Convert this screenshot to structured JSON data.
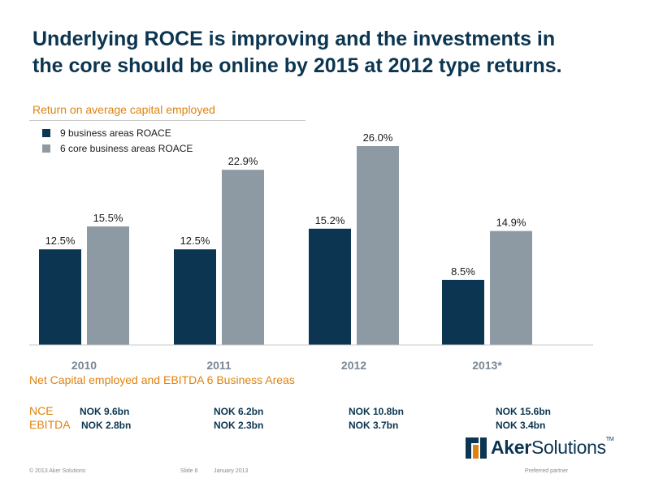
{
  "title": {
    "line1": "Underlying ROCE is improving and the investments in",
    "line2": "the core should be online by 2015 at 2012 type returns."
  },
  "subtitle": "Return on average capital employed",
  "legend": [
    {
      "label": "9 business areas ROACE",
      "color": "#0b3550"
    },
    {
      "label": "6 core business areas ROACE",
      "color": "#8e9aa3"
    }
  ],
  "chart_data": {
    "type": "bar",
    "title": "Return on average capital employed",
    "categories": [
      "2010",
      "2011",
      "2012",
      "2013*"
    ],
    "series": [
      {
        "name": "9 business areas ROACE",
        "values": [
          12.5,
          12.5,
          15.2,
          8.5
        ],
        "labels": [
          "12.5%",
          "12.5%",
          "15.2%",
          "8.5%"
        ],
        "color": "#0b3550"
      },
      {
        "name": "6 core business areas ROACE",
        "values": [
          15.5,
          22.9,
          26.0,
          14.9
        ],
        "labels": [
          "15.5%",
          "22.9%",
          "26.0%",
          "14.9%"
        ],
        "color": "#8e9aa3"
      }
    ],
    "ylim": [
      0,
      26
    ],
    "grid": false,
    "legend_position": "top-left"
  },
  "section2_title": "Net Capital employed and EBITDA  6 Business Areas",
  "nce": {
    "label": "NCE",
    "values": [
      "NOK 9.6bn",
      "NOK 6.2bn",
      "NOK 10.8bn",
      "NOK 15.6bn"
    ]
  },
  "ebitda": {
    "label": "EBITDA",
    "values": [
      "NOK 2.8bn",
      "NOK 2.3bn",
      "NOK 3.7bn",
      "NOK 3.4bn"
    ]
  },
  "logo": {
    "brand_bold": "Aker",
    "brand_rest": "Solutions",
    "mark": "TM",
    "colors": [
      "#0b3550",
      "#e0820f"
    ]
  },
  "footer": {
    "copyright": "© 2013 Aker Solutions",
    "slide": "Slide 8",
    "date": "January 2013",
    "tagline": "Preferred partner"
  }
}
